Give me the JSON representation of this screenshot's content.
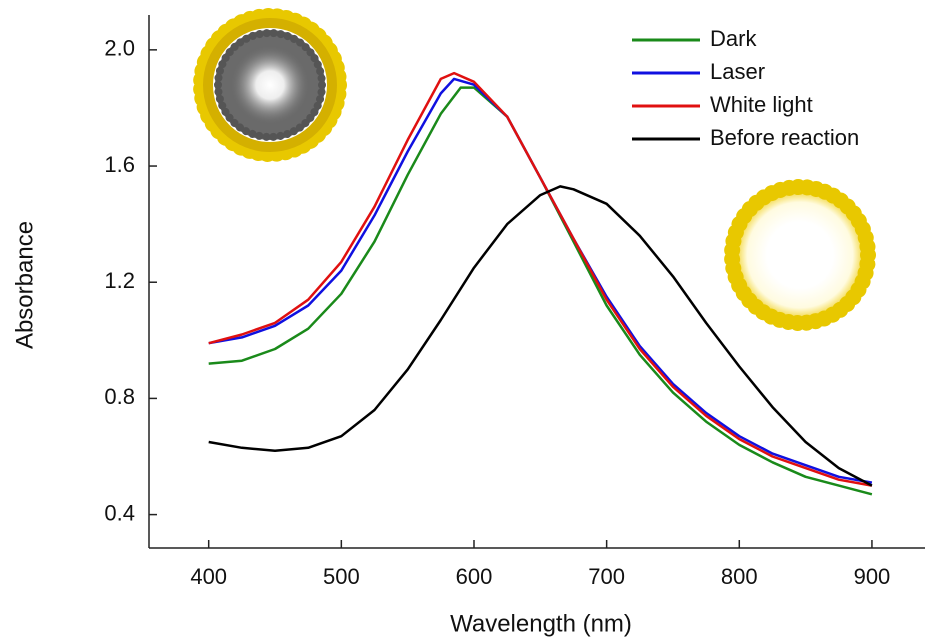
{
  "chart_data": {
    "type": "line",
    "x_label": "Wavelength (nm)",
    "y_label": "Absorbance",
    "xlim": [
      355,
      940
    ],
    "ylim": [
      0.285,
      2.12
    ],
    "xticks": [
      400,
      500,
      600,
      700,
      800,
      900
    ],
    "yticks": [
      {
        "value": 0.4,
        "label": "0.4"
      },
      {
        "value": 0.8,
        "label": "0.8"
      },
      {
        "value": 1.2,
        "label": "1.2"
      },
      {
        "value": 1.6,
        "label": "1.6"
      },
      {
        "value": 2,
        "label": "2.0"
      }
    ],
    "legend": "top-right",
    "series": [
      {
        "name": "Dark",
        "color": "#1a8a1a",
        "x": [
          400,
          425,
          450,
          475,
          500,
          525,
          550,
          575,
          590,
          600,
          625,
          650,
          675,
          700,
          725,
          750,
          775,
          800,
          825,
          850,
          875,
          900
        ],
        "values": [
          0.92,
          0.93,
          0.97,
          1.04,
          1.16,
          1.34,
          1.57,
          1.78,
          1.87,
          1.87,
          1.77,
          1.56,
          1.34,
          1.12,
          0.95,
          0.82,
          0.72,
          0.64,
          0.58,
          0.53,
          0.5,
          0.47
        ]
      },
      {
        "name": "Laser",
        "color": "#1010e0",
        "x": [
          400,
          425,
          450,
          475,
          500,
          525,
          550,
          575,
          585,
          600,
          625,
          650,
          675,
          700,
          725,
          750,
          775,
          800,
          825,
          850,
          875,
          900
        ],
        "values": [
          0.99,
          1.01,
          1.05,
          1.12,
          1.24,
          1.43,
          1.65,
          1.85,
          1.9,
          1.88,
          1.77,
          1.56,
          1.35,
          1.15,
          0.98,
          0.85,
          0.75,
          0.67,
          0.61,
          0.57,
          0.53,
          0.51
        ]
      },
      {
        "name": "White light",
        "color": "#e01010",
        "x": [
          400,
          425,
          450,
          475,
          500,
          525,
          550,
          575,
          585,
          600,
          625,
          650,
          675,
          700,
          725,
          750,
          775,
          800,
          825,
          850,
          875,
          900
        ],
        "values": [
          0.99,
          1.02,
          1.06,
          1.14,
          1.27,
          1.46,
          1.69,
          1.9,
          1.92,
          1.89,
          1.77,
          1.56,
          1.35,
          1.14,
          0.97,
          0.84,
          0.74,
          0.66,
          0.6,
          0.56,
          0.52,
          0.5
        ]
      },
      {
        "name": "Before reaction",
        "color": "#000000",
        "x": [
          400,
          425,
          450,
          475,
          500,
          525,
          550,
          575,
          600,
          625,
          650,
          665,
          675,
          700,
          725,
          750,
          775,
          800,
          825,
          850,
          875,
          900
        ],
        "values": [
          0.65,
          0.63,
          0.62,
          0.63,
          0.67,
          0.76,
          0.9,
          1.07,
          1.25,
          1.4,
          1.5,
          1.53,
          1.52,
          1.47,
          1.36,
          1.22,
          1.06,
          0.91,
          0.77,
          0.65,
          0.56,
          0.5
        ]
      }
    ]
  }
}
